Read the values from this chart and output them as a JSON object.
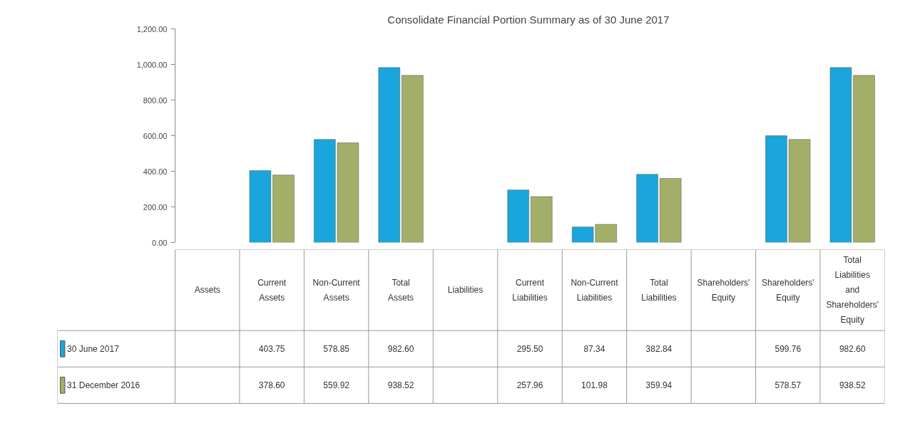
{
  "chart_data": {
    "type": "bar",
    "title": "Consolidate Financial  Portion Summary as of 30 June 2017",
    "categories": [
      "Assets",
      "Current Assets",
      "Non-Current Assets",
      "Total Assets",
      "Liabilities",
      "Current Liabilities",
      "Non-Current Liabilities",
      "Total Liabilities",
      "Shareholders' Equity",
      "Shareholders' Equity",
      "Total Liabilities and Shareholders' Equity"
    ],
    "series": [
      {
        "name": "30 June 2017",
        "color": "#1aa6dc",
        "values": [
          null,
          403.75,
          578.85,
          982.6,
          null,
          295.5,
          87.34,
          382.84,
          null,
          599.76,
          982.6
        ],
        "value_labels": [
          null,
          "403.75",
          "578.85",
          "982.60",
          null,
          "295.50",
          "87.34",
          "382.84",
          null,
          "599.76",
          "982.60"
        ]
      },
      {
        "name": "31 December 2016",
        "color": "#a3ae68",
        "values": [
          null,
          378.6,
          559.92,
          938.52,
          null,
          257.96,
          101.98,
          359.94,
          null,
          578.57,
          938.52
        ],
        "value_labels": [
          null,
          "378.60",
          "559.92",
          "938.52",
          null,
          "257.96",
          "101.98",
          "359.94",
          null,
          "578.57",
          "938.52"
        ]
      }
    ],
    "ylim": [
      0,
      1200
    ],
    "yticks": [
      {
        "value": 0,
        "label": "0.00"
      },
      {
        "value": 200,
        "label": "200.00"
      },
      {
        "value": 400,
        "label": "400.00"
      },
      {
        "value": 600,
        "label": "600.00"
      },
      {
        "value": 800,
        "label": "800.00"
      },
      {
        "value": 1000,
        "label": "1,000.00"
      },
      {
        "value": 1200,
        "label": "1,200.00"
      }
    ],
    "legend": "bottom left"
  }
}
